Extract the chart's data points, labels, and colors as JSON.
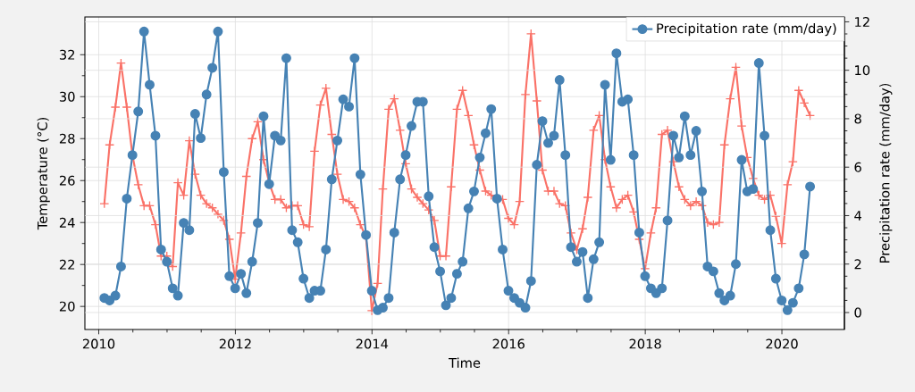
{
  "chart_data": {
    "type": "line",
    "xlabel": "Time",
    "ylabel": "Temperature (°C)",
    "y2label": "Precipitation rate (mm/day)",
    "x": [
      "2010-01-31",
      "2010-02-28",
      "2010-03-31",
      "2010-04-30",
      "2010-05-31",
      "2010-06-30",
      "2010-07-31",
      "2010-08-31",
      "2010-09-30",
      "2010-10-31",
      "2010-11-30",
      "2010-12-31",
      "2011-01-31",
      "2011-02-28",
      "2011-03-31",
      "2011-04-30",
      "2011-05-31",
      "2011-06-30",
      "2011-07-31",
      "2011-08-31",
      "2011-09-30",
      "2011-10-31",
      "2011-11-30",
      "2011-12-31",
      "2012-01-31",
      "2012-02-29",
      "2012-03-31",
      "2012-04-30",
      "2012-05-31",
      "2012-06-30",
      "2012-07-31",
      "2012-08-31",
      "2012-09-30",
      "2012-10-31",
      "2012-11-30",
      "2012-12-31",
      "2013-01-31",
      "2013-02-28",
      "2013-03-31",
      "2013-04-30",
      "2013-05-31",
      "2013-06-30",
      "2013-07-31",
      "2013-08-31",
      "2013-09-30",
      "2013-10-31",
      "2013-11-30",
      "2013-12-31",
      "2014-01-31",
      "2014-02-28",
      "2014-03-31",
      "2014-04-30",
      "2014-05-31",
      "2014-06-30",
      "2014-07-31",
      "2014-08-31",
      "2014-09-30",
      "2014-10-31",
      "2014-11-30",
      "2014-12-31",
      "2015-01-31",
      "2015-02-28",
      "2015-03-31",
      "2015-04-30",
      "2015-05-31",
      "2015-06-30",
      "2015-07-31",
      "2015-08-31",
      "2015-09-30",
      "2015-10-31",
      "2015-11-30",
      "2015-12-31",
      "2016-01-31",
      "2016-02-29",
      "2016-03-31",
      "2016-04-30",
      "2016-05-31",
      "2016-06-30",
      "2016-07-31",
      "2016-08-31",
      "2016-09-30",
      "2016-10-31",
      "2016-11-30",
      "2016-12-31",
      "2017-01-31",
      "2017-02-28",
      "2017-03-31",
      "2017-04-30",
      "2017-05-31",
      "2017-06-30",
      "2017-07-31",
      "2017-08-31",
      "2017-09-30",
      "2017-10-31",
      "2017-11-30",
      "2017-12-31",
      "2018-01-31",
      "2018-02-28",
      "2018-03-31",
      "2018-04-30",
      "2018-05-31",
      "2018-06-30",
      "2018-07-31",
      "2018-08-31",
      "2018-09-30",
      "2018-10-31",
      "2018-11-30",
      "2018-12-31",
      "2019-01-31",
      "2019-02-28",
      "2019-03-31",
      "2019-04-30",
      "2019-05-31",
      "2019-06-30",
      "2019-07-31",
      "2019-08-31",
      "2019-09-30",
      "2019-10-31",
      "2019-11-30",
      "2019-12-31",
      "2020-01-31",
      "2020-02-29",
      "2020-03-31",
      "2020-04-30",
      "2020-05-31"
    ],
    "series": [
      {
        "color": "#fa7268",
        "marker": "cross",
        "values": [
          24.9,
          27.7,
          29.5,
          31.6,
          29.5,
          27.2,
          25.8,
          24.8,
          24.8,
          23.9,
          22.4,
          22.4,
          21.9,
          25.9,
          25.3,
          27.9,
          26.3,
          25.3,
          24.9,
          24.7,
          24.4,
          24.1,
          23.2,
          21.3,
          23.5,
          26.2,
          28.0,
          28.8,
          27.0,
          25.9,
          25.1,
          25.1,
          24.7,
          24.8,
          24.8,
          23.9,
          23.8,
          27.4,
          29.6,
          30.4,
          28.2,
          26.3,
          25.1,
          25.0,
          24.7,
          23.9,
          23.3,
          19.8,
          21.1,
          25.6,
          29.4,
          29.9,
          28.4,
          26.8,
          25.6,
          25.2,
          24.9,
          24.6,
          24.1,
          22.4,
          22.4,
          25.7,
          29.4,
          30.3,
          29.1,
          27.7,
          26.5,
          25.5,
          25.3,
          25.1,
          25.1,
          24.2,
          23.9,
          25.0,
          30.1,
          33.0,
          29.8,
          26.5,
          25.5,
          25.5,
          24.9,
          24.8,
          23.5,
          22.7,
          23.7,
          25.2,
          28.4,
          29.1,
          27.0,
          25.7,
          24.7,
          25.1,
          25.3,
          24.5,
          23.2,
          21.8,
          23.5,
          24.7,
          28.2,
          28.4,
          26.9,
          25.7,
          25.1,
          24.8,
          25.0,
          24.8,
          24.0,
          23.9,
          24.0,
          27.7,
          29.9,
          31.4,
          28.6,
          27.1,
          26.1,
          25.3,
          25.1,
          25.3,
          24.3,
          23.0,
          25.8,
          26.9,
          30.3,
          29.7,
          29.1
        ]
      },
      {
        "name": "Precipitation rate (mm/day)",
        "color": "#4682b4",
        "marker": "circle",
        "axis": "y2",
        "values": [
          0.6,
          0.5,
          0.7,
          1.9,
          4.7,
          6.5,
          8.3,
          11.6,
          9.4,
          7.3,
          2.6,
          2.1,
          1.0,
          0.7,
          3.7,
          3.4,
          8.2,
          7.2,
          9.0,
          10.1,
          11.6,
          5.8,
          1.5,
          1.0,
          1.6,
          0.8,
          2.1,
          3.7,
          8.1,
          5.3,
          7.3,
          7.1,
          10.5,
          3.4,
          2.9,
          1.4,
          0.6,
          0.9,
          0.9,
          2.6,
          5.5,
          7.1,
          8.8,
          8.5,
          10.5,
          5.7,
          3.2,
          0.9,
          0.1,
          0.2,
          0.6,
          3.3,
          5.5,
          6.5,
          7.7,
          8.7,
          8.7,
          4.8,
          2.7,
          1.7,
          0.3,
          0.6,
          1.6,
          2.1,
          4.3,
          5.0,
          6.4,
          7.4,
          8.4,
          4.7,
          2.6,
          0.9,
          0.6,
          0.4,
          0.2,
          1.3,
          6.1,
          7.9,
          7.0,
          7.3,
          9.6,
          6.5,
          2.7,
          2.1,
          2.5,
          0.6,
          2.2,
          2.9,
          9.4,
          6.3,
          10.7,
          8.7,
          8.8,
          6.5,
          3.3,
          1.5,
          1.0,
          0.8,
          1.0,
          3.8,
          7.3,
          6.4,
          8.1,
          6.5,
          7.5,
          5.0,
          1.9,
          1.7,
          0.8,
          0.5,
          0.7,
          2.0,
          6.3,
          5.0,
          5.1,
          10.3,
          7.3,
          3.4,
          1.4,
          0.5,
          0.1,
          0.4,
          1.0,
          2.4,
          5.2
        ]
      }
    ],
    "xlim": [
      "2009-10-19",
      "2020-12-01"
    ],
    "xticks": [
      {
        "value": "2010-01-01",
        "label": "2010"
      },
      {
        "value": "2012-01-01",
        "label": "2012"
      },
      {
        "value": "2014-01-01",
        "label": "2014"
      },
      {
        "value": "2016-01-01",
        "label": "2016"
      },
      {
        "value": "2018-01-01",
        "label": "2018"
      },
      {
        "value": "2020-01-01",
        "label": "2020"
      }
    ],
    "ylim": [
      18.9,
      33.8
    ],
    "yticks": [
      20,
      22,
      24,
      26,
      28,
      30,
      32
    ],
    "y2lim": [
      -0.7,
      12.2
    ],
    "y2ticks": [
      0,
      2,
      4,
      6,
      8,
      10,
      12
    ],
    "grid": true,
    "legend": "top right"
  }
}
